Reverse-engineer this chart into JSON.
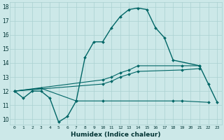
{
  "xlabel": "Humidex (Indice chaleur)",
  "main_curve_x": [
    0,
    1,
    2,
    3,
    4,
    5,
    6,
    7,
    8,
    9,
    10,
    11,
    12,
    13,
    14,
    15,
    16,
    17,
    18,
    21,
    22,
    23
  ],
  "main_curve_y": [
    12.0,
    11.5,
    12.0,
    12.0,
    11.5,
    9.8,
    10.2,
    11.3,
    14.4,
    15.5,
    15.5,
    16.5,
    17.3,
    17.8,
    17.9,
    17.8,
    16.5,
    15.8,
    14.2,
    13.8,
    12.5,
    11.2
  ],
  "flat_line_x": [
    0,
    3,
    7,
    10,
    18,
    19,
    22
  ],
  "flat_line_y": [
    12.0,
    12.2,
    11.3,
    11.3,
    11.3,
    11.3,
    11.2
  ],
  "upper_line_x": [
    0,
    10,
    11,
    12,
    13,
    14,
    19,
    21
  ],
  "upper_line_y": [
    12.0,
    12.8,
    13.0,
    13.3,
    13.5,
    13.8,
    13.8,
    13.8
  ],
  "lower_line_x": [
    0,
    10,
    11,
    12,
    13,
    14,
    19,
    21
  ],
  "lower_line_y": [
    12.0,
    12.5,
    12.7,
    13.0,
    13.2,
    13.4,
    13.5,
    13.6
  ],
  "color": "#006666",
  "bg_color": "#cce8e8",
  "grid_color": "#aad0d0",
  "ylim": [
    9.6,
    18.3
  ],
  "yticks": [
    10,
    11,
    12,
    13,
    14,
    15,
    16,
    17,
    18
  ],
  "xlim": [
    -0.5,
    23.5
  ],
  "xticks": [
    0,
    1,
    2,
    3,
    4,
    5,
    6,
    7,
    8,
    9,
    10,
    11,
    12,
    13,
    14,
    15,
    16,
    17,
    18,
    19,
    20,
    21,
    22,
    23
  ]
}
